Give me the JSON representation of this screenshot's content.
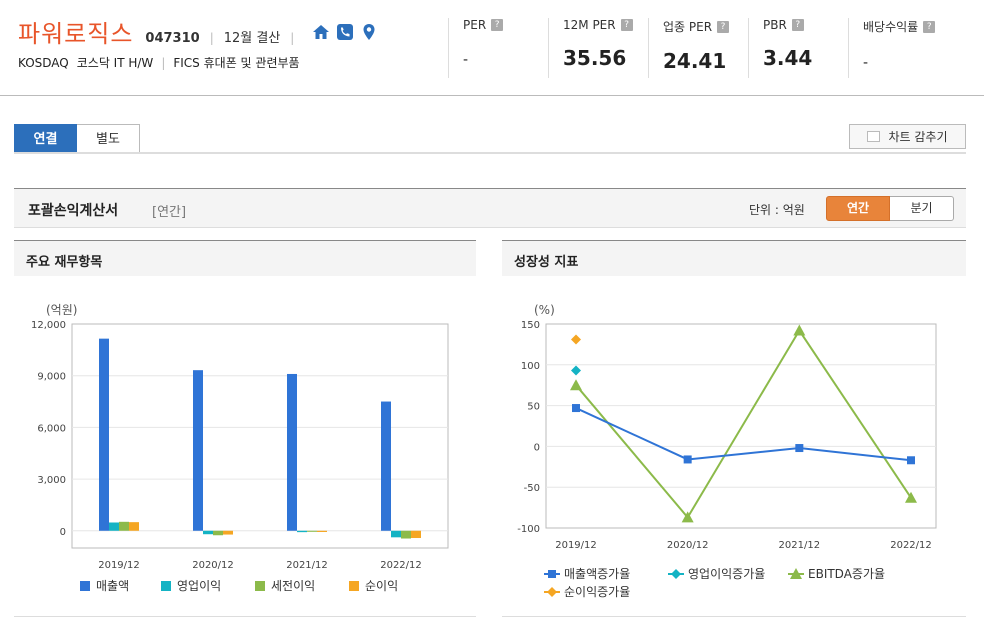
{
  "header": {
    "company": "파워로직스",
    "code": "047310",
    "settlement": "12월 결산",
    "market": "KOSDAQ",
    "sector": "코스닥 IT H/W",
    "fics": "FICS 휴대폰 및 관련부품",
    "icons": [
      "home-icon",
      "phone-icon",
      "location-icon"
    ],
    "metrics": [
      {
        "label": "PER",
        "value": "-"
      },
      {
        "label": "12M PER",
        "value": "35.56"
      },
      {
        "label": "업종 PER",
        "value": "24.41"
      },
      {
        "label": "PBR",
        "value": "3.44"
      },
      {
        "label": "배당수익률",
        "value": "-"
      }
    ]
  },
  "tabs": [
    {
      "label": "연결",
      "active": true
    },
    {
      "label": "별도",
      "active": false
    }
  ],
  "hide_chart_label": "차트 감추기",
  "section": {
    "title": "포괄손익계산서",
    "subtitle": "[연간]",
    "unit": "단위 : 억원",
    "period_buttons": [
      {
        "label": "연간",
        "active": true
      },
      {
        "label": "분기",
        "active": false
      }
    ]
  },
  "colors": {
    "accent_blue": "#2c6fbb",
    "accent_orange": "#e8843a",
    "company_red": "#e8552a",
    "series_blue": "#2f74d6",
    "series_cyan": "#14b3c4",
    "series_green": "#8cba4a",
    "series_orange": "#f5a623"
  },
  "chart_data": [
    {
      "type": "bar",
      "title": "주요 재무항목",
      "ylabel": "(억원)",
      "categories": [
        "2019/12",
        "2020/12",
        "2021/12",
        "2022/12"
      ],
      "yticks": [
        "12,000",
        "9,000",
        "6,000",
        "3,000",
        "0"
      ],
      "ylim": [
        -1000,
        12000
      ],
      "grid": true,
      "legend_position": "bottom",
      "series": [
        {
          "name": "매출액",
          "values": [
            11150,
            9320,
            9100,
            7500
          ]
        },
        {
          "name": "영업이익",
          "values": [
            480,
            -200,
            -80,
            -380
          ]
        },
        {
          "name": "세전이익",
          "values": [
            520,
            -260,
            -60,
            -450
          ]
        },
        {
          "name": "순이익",
          "values": [
            500,
            -220,
            -70,
            -420
          ]
        }
      ]
    },
    {
      "type": "line",
      "title": "성장성 지표",
      "ylabel": "(%)",
      "categories": [
        "2019/12",
        "2020/12",
        "2021/12",
        "2022/12"
      ],
      "yticks": [
        "150",
        "100",
        "50",
        "0",
        "-50",
        "-100"
      ],
      "ylim": [
        -100,
        150
      ],
      "grid": true,
      "legend_position": "bottom",
      "series": [
        {
          "name": "매출액증가율",
          "values": [
            47,
            -16,
            -2,
            -17
          ]
        },
        {
          "name": "영업이익증가율",
          "values": [
            93,
            null,
            null,
            null
          ]
        },
        {
          "name": "EBITDA증가율",
          "values": [
            75,
            -87,
            142,
            -63
          ]
        },
        {
          "name": "순이익증가율",
          "values": [
            131,
            null,
            null,
            null
          ]
        }
      ]
    }
  ]
}
